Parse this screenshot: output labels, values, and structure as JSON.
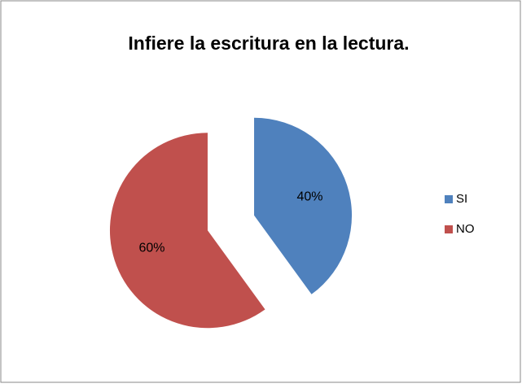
{
  "chart_data": {
    "type": "pie",
    "title": "Infiere la escritura en la lectura.",
    "categories": [
      "SI",
      "NO"
    ],
    "values": [
      40,
      60
    ],
    "value_labels": [
      "40%",
      "60%"
    ],
    "colors": [
      "#4f81bd",
      "#c0504d"
    ],
    "legend": "right"
  }
}
